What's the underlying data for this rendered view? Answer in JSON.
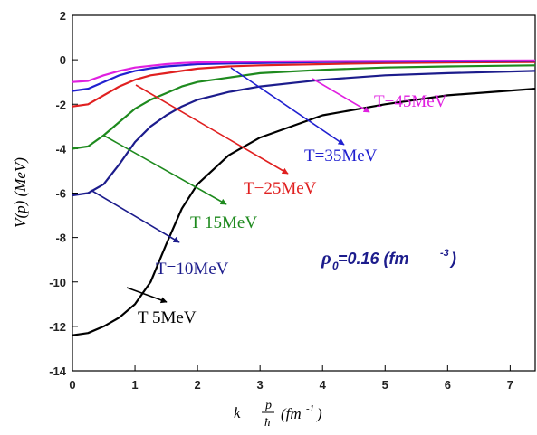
{
  "chart_data": {
    "type": "line",
    "x": [
      0,
      0.25,
      0.5,
      0.75,
      1,
      1.25,
      1.5,
      1.75,
      2,
      2.5,
      3,
      4,
      5,
      6,
      7.4
    ],
    "series": [
      {
        "name": "T 5MeV",
        "color": "#000000",
        "values": [
          -12.4,
          -12.3,
          -12.0,
          -11.6,
          -11.0,
          -10.0,
          -8.3,
          -6.7,
          -5.6,
          -4.3,
          -3.5,
          -2.5,
          -2.0,
          -1.6,
          -1.3
        ]
      },
      {
        "name": "T=10MeV",
        "color": "#1c1c8c",
        "values": [
          -6.1,
          -6.0,
          -5.6,
          -4.7,
          -3.7,
          -3.0,
          -2.5,
          -2.1,
          -1.8,
          -1.45,
          -1.2,
          -0.9,
          -0.7,
          -0.6,
          -0.5
        ]
      },
      {
        "name": "T 15MeV",
        "color": "#1e8a1e",
        "values": [
          -4.0,
          -3.9,
          -3.4,
          -2.8,
          -2.2,
          -1.8,
          -1.5,
          -1.2,
          -1.0,
          -0.8,
          -0.6,
          -0.45,
          -0.35,
          -0.3,
          -0.25
        ]
      },
      {
        "name": "T−25MeV",
        "color": "#e02020",
        "values": [
          -2.1,
          -2.0,
          -1.6,
          -1.2,
          -0.9,
          -0.7,
          -0.6,
          -0.5,
          -0.4,
          -0.3,
          -0.25,
          -0.2,
          -0.15,
          -0.12,
          -0.1
        ]
      },
      {
        "name": "T=35MeV",
        "color": "#2020d0",
        "values": [
          -1.4,
          -1.3,
          -1.0,
          -0.7,
          -0.5,
          -0.38,
          -0.3,
          -0.25,
          -0.2,
          -0.17,
          -0.15,
          -0.1,
          -0.08,
          -0.07,
          -0.05
        ]
      },
      {
        "name": "T−45MeV",
        "color": "#e020e0",
        "values": [
          -1.0,
          -0.95,
          -0.7,
          -0.5,
          -0.35,
          -0.27,
          -0.2,
          -0.15,
          -0.12,
          -0.1,
          -0.08,
          -0.06,
          -0.05,
          -0.04,
          -0.03
        ]
      }
    ],
    "xlim": [
      0,
      7.4
    ],
    "ylim": [
      -14,
      2
    ],
    "xticks": [
      0,
      1,
      2,
      3,
      4,
      5,
      6,
      7
    ],
    "yticks": [
      -14,
      -12,
      -10,
      -8,
      -6,
      -4,
      -2,
      0,
      2
    ],
    "ylabel": "V(p) (MeV)",
    "xlabel": {
      "k": "k",
      "num": "p",
      "den": "ħ",
      "unit": "(fm",
      "exp": "-1",
      "close": ")"
    },
    "density": {
      "symbol": "ρ",
      "sub": "0",
      "text": " =0.16 (fm",
      "sup": "-3",
      "close": ")"
    }
  }
}
